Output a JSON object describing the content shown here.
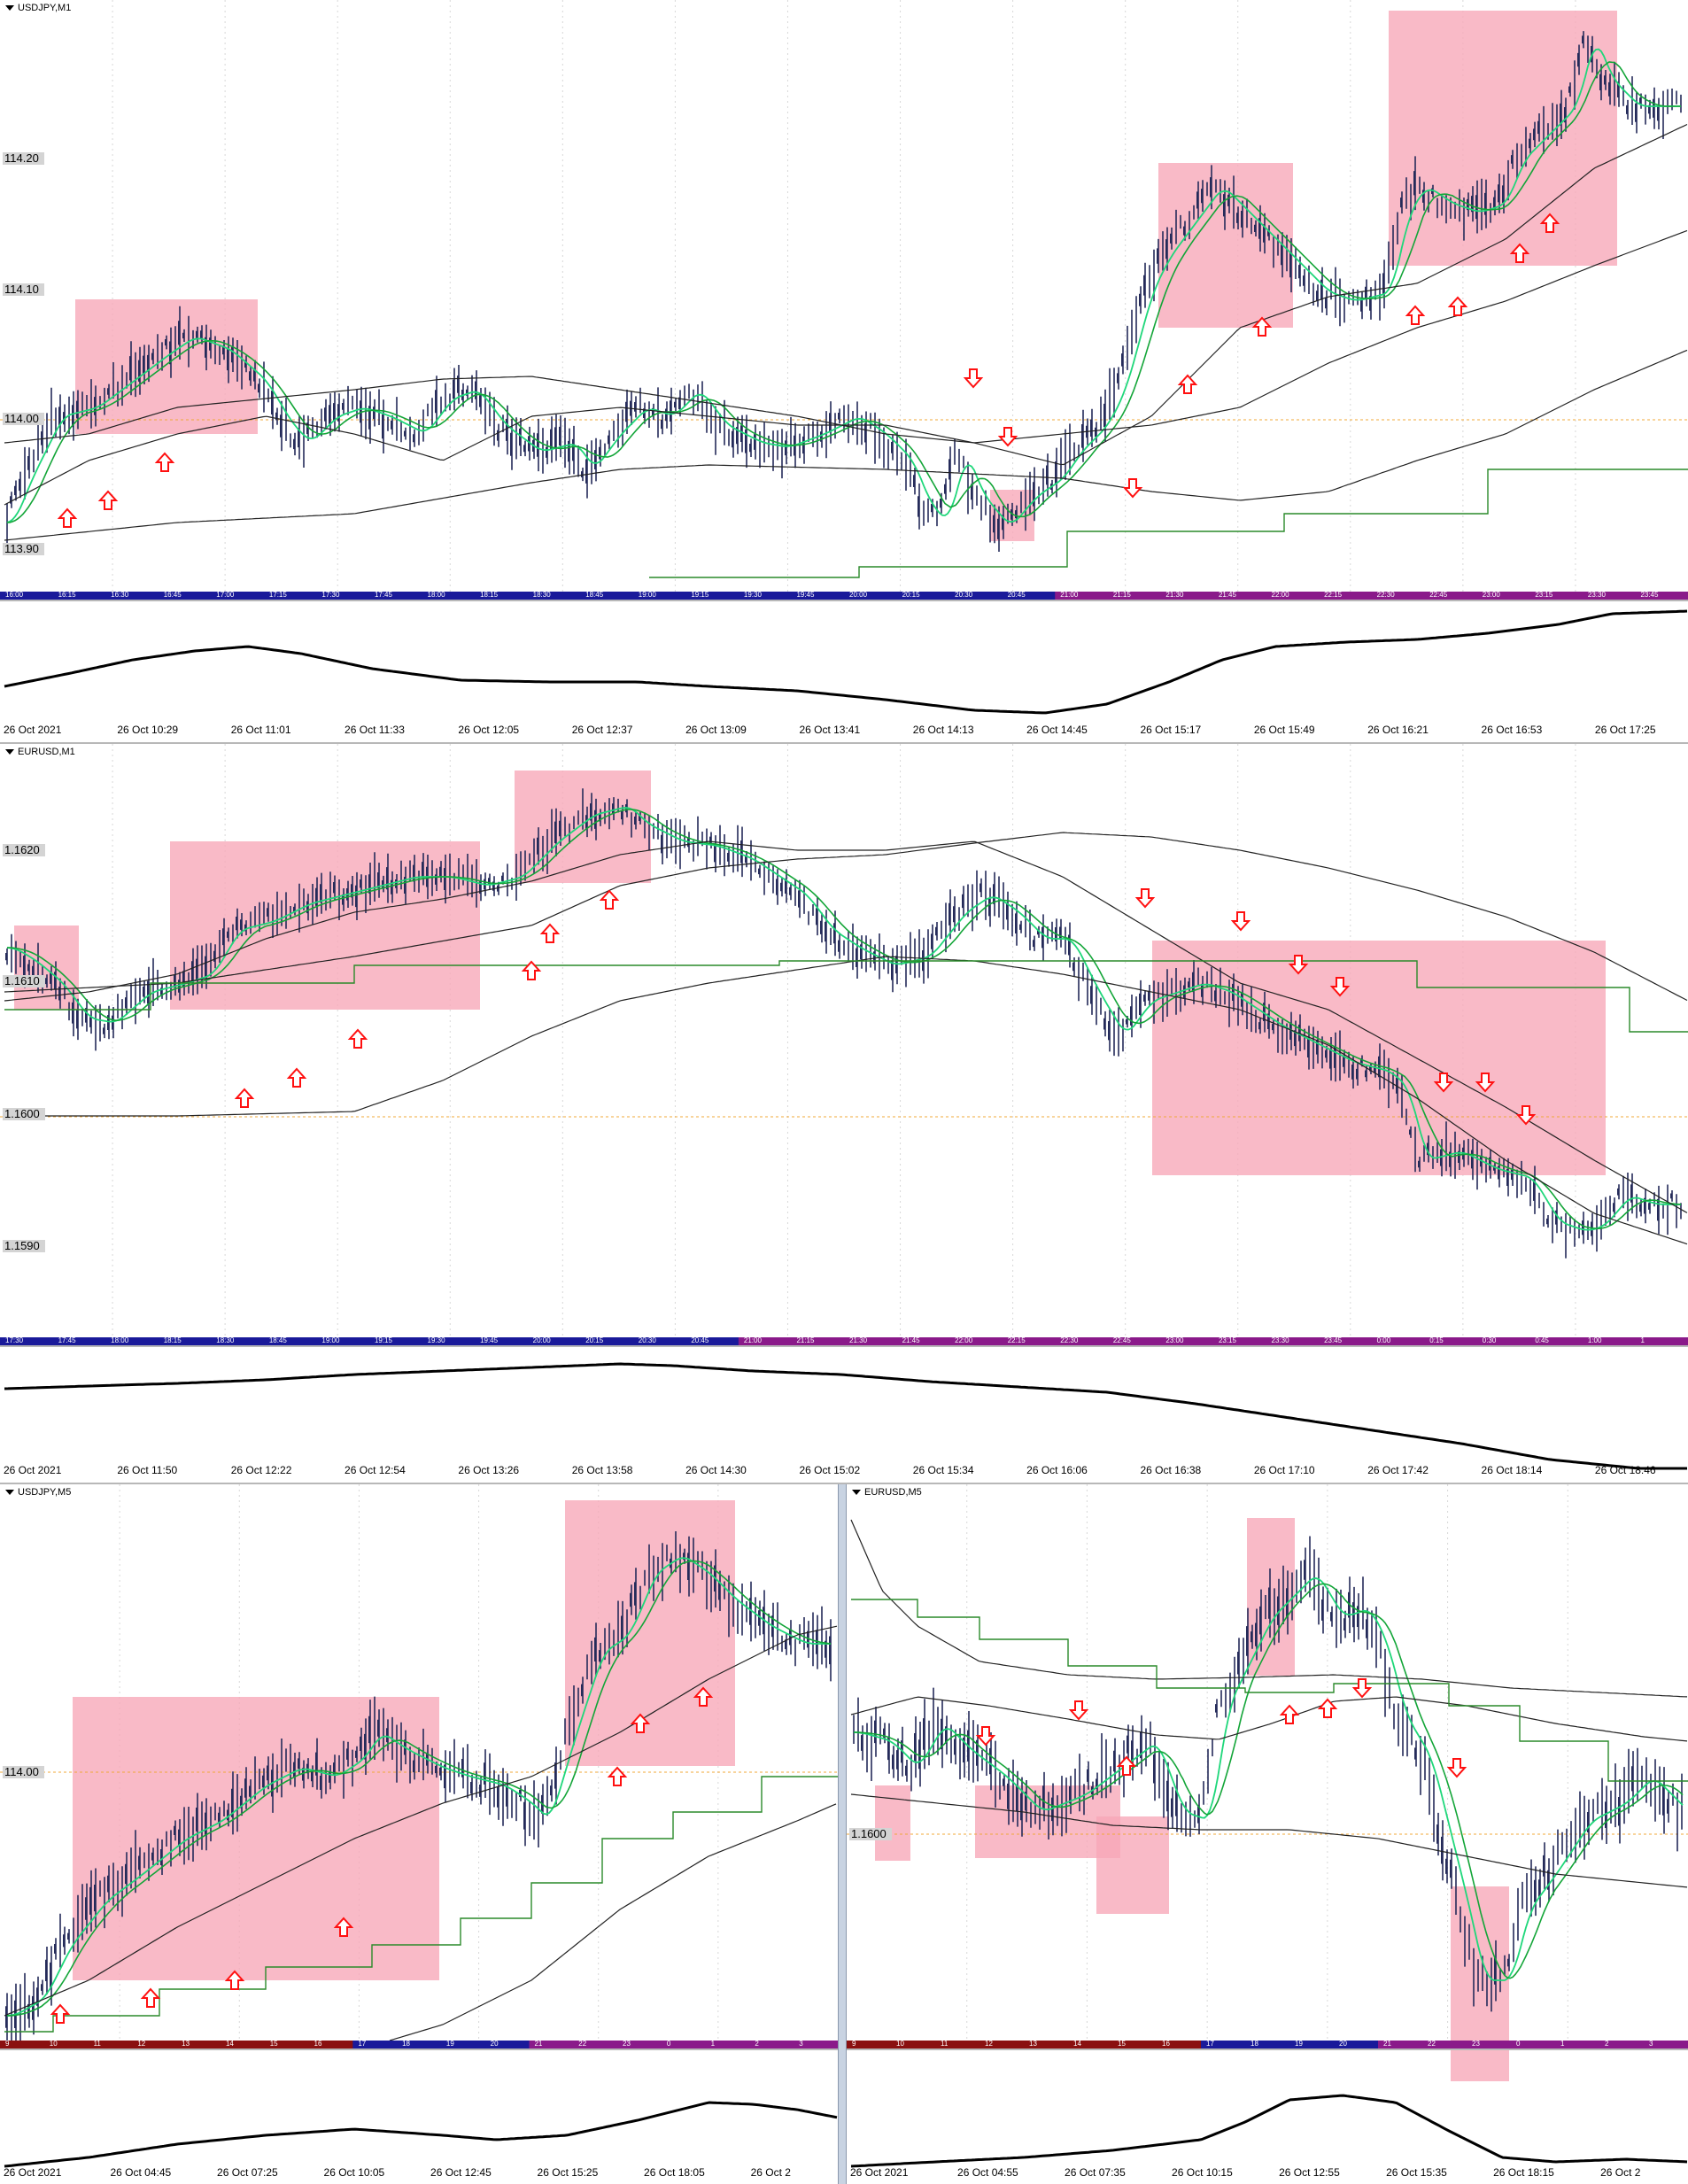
{
  "colors": {
    "candle": "#252b5a",
    "ma_fast": "#1fd77a",
    "ma_mid": "#13a538",
    "ma_slow": "#222222",
    "step_line": "#2a8a2a",
    "zone": "#f7a6b7",
    "arrow": "#ff1010",
    "level_line": "#f0a83a",
    "osc": "#000000",
    "session_bar_blue": "#1a1a9a",
    "session_bar_purple": "#8a1a8a",
    "session_bar_red": "#8a1010",
    "session_bar_green": "#1a7a1a"
  },
  "panels": [
    {
      "id": "usdjpy-m1",
      "title": "USDJPY,M1",
      "price_labels": [
        "114.20",
        "114.10",
        "114.00",
        "113.90"
      ],
      "session_times": [
        "16:00",
        "16:15",
        "16:30",
        "16:45",
        "17:00",
        "17:15",
        "17:30",
        "17:45",
        "18:00",
        "18:15",
        "18:30",
        "18:45",
        "19:00",
        "19:15",
        "19:30",
        "19:45",
        "20:00",
        "20:15",
        "20:30",
        "20:45",
        "21:00",
        "21:15",
        "21:30",
        "21:45",
        "22:00",
        "22:15",
        "22:30",
        "22:45",
        "23:00",
        "23:15",
        "23:30",
        "23:45"
      ],
      "time_ticks": [
        "26 Oct 2021",
        "26 Oct 10:29",
        "26 Oct 11:01",
        "26 Oct 11:33",
        "26 Oct 12:05",
        "26 Oct 12:37",
        "26 Oct 13:09",
        "26 Oct 13:41",
        "26 Oct 14:13",
        "26 Oct 14:45",
        "26 Oct 15:17",
        "26 Oct 15:49",
        "26 Oct 16:21",
        "26 Oct 16:53",
        "26 Oct 17:25"
      ]
    },
    {
      "id": "eurusd-m1",
      "title": "EURUSD,M1",
      "price_labels": [
        "1.1620",
        "1.1610",
        "1.1600",
        "1.1590"
      ],
      "session_times": [
        "17:30",
        "17:45",
        "18:00",
        "18:15",
        "18:30",
        "18:45",
        "19:00",
        "19:15",
        "19:30",
        "19:45",
        "20:00",
        "20:15",
        "20:30",
        "20:45",
        "21:00",
        "21:15",
        "21:30",
        "21:45",
        "22:00",
        "22:15",
        "22:30",
        "22:45",
        "23:00",
        "23:15",
        "23:30",
        "23:45",
        "0:00",
        "0:15",
        "0:30",
        "0:45",
        "1:00",
        "1"
      ],
      "time_ticks": [
        "26 Oct 2021",
        "26 Oct 11:50",
        "26 Oct 12:22",
        "26 Oct 12:54",
        "26 Oct 13:26",
        "26 Oct 13:58",
        "26 Oct 14:30",
        "26 Oct 15:02",
        "26 Oct 15:34",
        "26 Oct 16:06",
        "26 Oct 16:38",
        "26 Oct 17:10",
        "26 Oct 17:42",
        "26 Oct 18:14",
        "26 Oct 18:46"
      ]
    },
    {
      "id": "usdjpy-m5",
      "title": "USDJPY,M5",
      "price_labels": [
        "114.00"
      ],
      "session_times": [
        "9",
        "10",
        "11",
        "12",
        "13",
        "14",
        "15",
        "16",
        "17",
        "18",
        "19",
        "20",
        "21",
        "22",
        "23",
        "0",
        "1",
        "2",
        "3"
      ],
      "time_ticks": [
        "26 Oct 2021",
        "26 Oct 04:45",
        "26 Oct 07:25",
        "26 Oct 10:05",
        "26 Oct 12:45",
        "26 Oct 15:25",
        "26 Oct 18:05",
        "26 Oct 2"
      ]
    },
    {
      "id": "eurusd-m5",
      "title": "EURUSD,M5",
      "price_labels": [
        "1.1600"
      ],
      "session_times": [
        "9",
        "10",
        "11",
        "12",
        "13",
        "14",
        "15",
        "16",
        "17",
        "18",
        "19",
        "20",
        "21",
        "22",
        "23",
        "0",
        "1",
        "2",
        "3"
      ],
      "time_ticks": [
        "26 Oct 2021",
        "26 Oct 04:55",
        "26 Oct 07:35",
        "26 Oct 10:15",
        "26 Oct 12:55",
        "26 Oct 15:35",
        "26 Oct 18:15",
        "26 Oct 2"
      ]
    }
  ]
}
